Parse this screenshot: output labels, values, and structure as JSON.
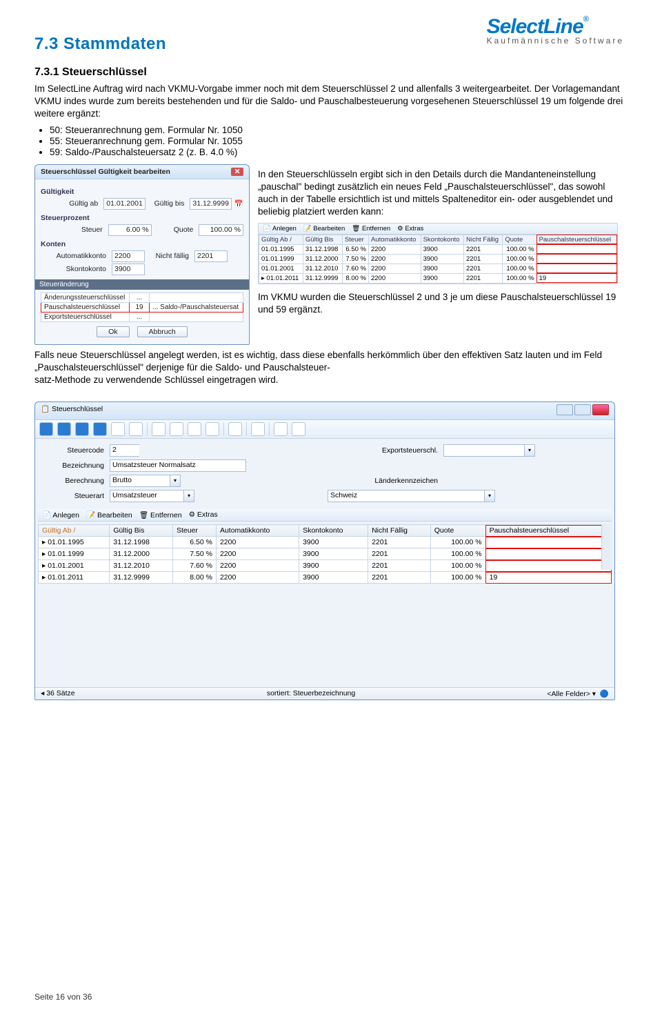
{
  "logo": {
    "brand": "SelectLine",
    "reg": "®",
    "sub": "Kaufmännische Software"
  },
  "heading": "7.3   Stammdaten",
  "sub": "7.3.1   Steuerschlüssel",
  "p1": "Im SelectLine Auftrag wird nach VKMU-Vorgabe immer noch mit dem Steuerschlüssel 2 und allenfalls 3 weitergearbeitet. Der Vorlagemandant VKMU indes wurde zum bereits bestehenden und für die Saldo- und Pauschalbesteuerung vorgesehenen Steuerschlüssel 19 um folgende drei weitere ergänzt:",
  "b1": "50: Steueranrechnung gem. Formular Nr. 1050",
  "b2": "55: Steueranrechnung gem. Formular Nr. 1055",
  "b3": "59: Saldo-/Pauschalsteuersatz 2 (z. B. 4.0 %)",
  "dlg": {
    "title": "Steuerschlüssel Gültigkeit bearbeiten",
    "s_gueltig": "Gültigkeit",
    "l_ab": "Gültig ab",
    "v_ab": "01.01.2001",
    "l_bis": "Gültig bis",
    "v_bis": "31.12.9999",
    "s_steuer": "Steuerprozent",
    "l_steuer": "Steuer",
    "v_steuer": "6.00 %",
    "l_quote": "Quote",
    "v_quote": "100.00 %",
    "s_konten": "Konten",
    "l_ak": "Automatikkonto",
    "v_ak": "2200",
    "l_nf": "Nicht fällig",
    "v_nf": "2201",
    "l_sk": "Skontokonto",
    "v_sk": "3900",
    "s_ae": "Steueränderung",
    "r1a": "Änderungssteuerschlüssel",
    "r1b": "...",
    "r1c": "",
    "r2a": "Pauschalsteuerschlüssel",
    "r2b": "19",
    "r2c": "... Saldo-/Pauschalsteuersat",
    "r3a": "Exportsteuerschlüssel",
    "r3b": "...",
    "r3c": "",
    "ok": "Ok",
    "cancel": "Abbruch"
  },
  "rtxt1": "In den Steuerschlüsseln ergibt sich in den Details durch die Mandanteneinstellung „pauschal\" bedingt zusätzlich ein neues Feld „Pauschalsteuerschlüssel\", das sowohl auch in der Tabelle ersichtlich ist und mittels Spalteneditor ein- oder ausgeblendet und beliebig platziert werden kann:",
  "smalltb": {
    "a": "Anlegen",
    "b": "Bearbeiten",
    "c": "Entfernen",
    "d": "Extras"
  },
  "sg": {
    "h": [
      "Gültig Ab /",
      "Gültig Bis",
      "Steuer",
      "Automatikkonto",
      "Skontokonto",
      "Nicht Fällig",
      "Quote",
      "Pauschalsteuerschlüssel"
    ],
    "rows": [
      [
        "01.01.1995",
        "31.12.1998",
        "6.50 %",
        "2200",
        "3900",
        "2201",
        "100.00 %",
        ""
      ],
      [
        "01.01.1999",
        "31.12.2000",
        "7.50 %",
        "2200",
        "3900",
        "2201",
        "100.00 %",
        ""
      ],
      [
        "01.01.2001",
        "31.12.2010",
        "7.60 %",
        "2200",
        "3900",
        "2201",
        "100.00 %",
        ""
      ],
      [
        "01.01.2011",
        "31.12.9999",
        "8.00 %",
        "2200",
        "3900",
        "2201",
        "100.00 %",
        "19"
      ]
    ]
  },
  "rtxt2": "Im VKMU wurden die Steuerschlüssel 2 und 3 je um diese Pauschalsteuerschlüssel 19 und 59 ergänzt.",
  "p2": "Falls neue Steuerschlüssel angelegt werden, ist es wichtig, dass diese ebenfalls herkömmlich über den effektiven Satz lauten und im Feld „Pauschalsteuerschlüssel\" derjenige für die Saldo- und Pauschalsteuer-\nsatz-Methode zu verwendende Schlüssel eingetragen wird.",
  "bw": {
    "title": "Steuerschlüssel",
    "f": {
      "sc": "Steuercode",
      "scv": "2",
      "bez": "Bezeichnung",
      "bezv": "Umsatzsteuer Normalsatz",
      "exp": "Exportsteuerschl.",
      "expv": "",
      "ber": "Berechnung",
      "berv": "Brutto",
      "lk": "Länderkennzeichen",
      "sa": "Steuerart",
      "sav": "Umsatzsteuer",
      "lkv": "Schweiz"
    },
    "tb": {
      "a": "Anlegen",
      "b": "Bearbeiten",
      "c": "Entfernen",
      "d": "Extras"
    },
    "h": [
      "Gültig Ab /",
      "Gültig Bis",
      "Steuer",
      "Automatikkonto",
      "Skontokonto",
      "Nicht Fällig",
      "Quote",
      "Pauschalsteuerschlüssel"
    ],
    "rows": [
      [
        "01.01.1995",
        "31.12.1998",
        "6.50 %",
        "2200",
        "3900",
        "2201",
        "100.00 %",
        ""
      ],
      [
        "01.01.1999",
        "31.12.2000",
        "7.50 %",
        "2200",
        "3900",
        "2201",
        "100.00 %",
        ""
      ],
      [
        "01.01.2001",
        "31.12.2010",
        "7.60 %",
        "2200",
        "3900",
        "2201",
        "100.00 %",
        ""
      ],
      [
        "01.01.2011",
        "31.12.9999",
        "8.00 %",
        "2200",
        "3900",
        "2201",
        "100.00 %",
        "19"
      ]
    ],
    "status_l": "36 Sätze",
    "status_m": "sortiert: Steuerbezeichnung",
    "status_r": "<Alle Felder>"
  },
  "footer": "Seite 16 von 36"
}
